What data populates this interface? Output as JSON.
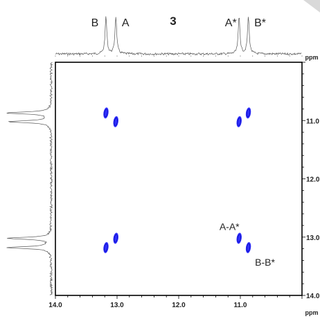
{
  "compound_label": "3",
  "chart_data": {
    "type": "scatter",
    "title": "",
    "xlabel": "ppm",
    "ylabel": "ppm",
    "xlim": [
      14.0,
      10.0
    ],
    "ylim": [
      10.0,
      14.0
    ],
    "x_ticks": [
      "14.0",
      "13.0",
      "12.0",
      "11.0"
    ],
    "y_ticks": [
      "11.0",
      "12.0",
      "13.0",
      "14.0"
    ],
    "peaks_1d": [
      {
        "label": "B",
        "ppm": 13.18
      },
      {
        "label": "A",
        "ppm": 13.02
      },
      {
        "label": "A*",
        "ppm": 11.02
      },
      {
        "label": "B*",
        "ppm": 10.87
      }
    ],
    "cross_peaks": [
      {
        "x": 13.18,
        "y": 10.87
      },
      {
        "x": 13.02,
        "y": 11.02
      },
      {
        "x": 11.02,
        "y": 11.02
      },
      {
        "x": 10.87,
        "y": 10.87
      },
      {
        "x": 13.18,
        "y": 13.18
      },
      {
        "x": 13.02,
        "y": 13.02
      },
      {
        "x": 11.02,
        "y": 13.02
      },
      {
        "x": 10.87,
        "y": 13.18
      }
    ],
    "annotations": [
      {
        "text": "A-A*",
        "x": 11.02,
        "y": 13.02
      },
      {
        "text": "B-B*",
        "x": 10.87,
        "y": 13.18
      }
    ],
    "contour_color": "#1a1aff"
  }
}
